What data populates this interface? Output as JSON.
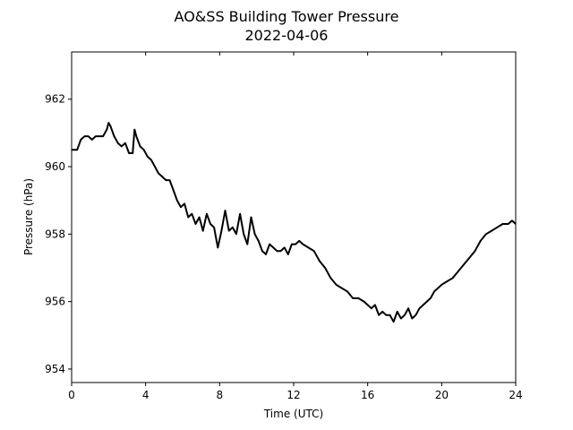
{
  "chart_data": {
    "type": "line",
    "title": "AO&SS Building Tower Pressure",
    "subtitle": "2022-04-06",
    "xlabel": "Time (UTC)",
    "ylabel": "Pressure (hPa)",
    "xlim": [
      0,
      24
    ],
    "ylim": [
      953.6,
      963.4
    ],
    "xticks": [
      0,
      4,
      8,
      12,
      16,
      20,
      24
    ],
    "yticks": [
      954,
      956,
      958,
      960,
      962
    ],
    "grid": false,
    "legend": "none",
    "line_color": "#000000",
    "series": [
      {
        "x": [
          0.0,
          0.3,
          0.5,
          0.7,
          0.9,
          1.1,
          1.3,
          1.5,
          1.7,
          1.9,
          2.0,
          2.1,
          2.3,
          2.5,
          2.7,
          2.9,
          3.1,
          3.3,
          3.4,
          3.5,
          3.7,
          3.9,
          4.1,
          4.3,
          4.5,
          4.7,
          4.9,
          5.1,
          5.3,
          5.5,
          5.7,
          5.9,
          6.1,
          6.3,
          6.5,
          6.7,
          6.9,
          7.1,
          7.3,
          7.5,
          7.7,
          7.9,
          8.1,
          8.3,
          8.5,
          8.7,
          8.9,
          9.1,
          9.3,
          9.5,
          9.7,
          9.9,
          10.1,
          10.3,
          10.5,
          10.7,
          10.9,
          11.1,
          11.3,
          11.5,
          11.7,
          11.9,
          12.1,
          12.3,
          12.5,
          12.8,
          13.1,
          13.4,
          13.7,
          14.0,
          14.3,
          14.6,
          14.9,
          15.2,
          15.5,
          15.8,
          16.0,
          16.2,
          16.4,
          16.6,
          16.8,
          17.0,
          17.2,
          17.4,
          17.6,
          17.8,
          18.0,
          18.2,
          18.4,
          18.6,
          18.8,
          19.0,
          19.2,
          19.4,
          19.6,
          19.8,
          20.0,
          20.3,
          20.6,
          20.9,
          21.2,
          21.5,
          21.8,
          22.1,
          22.4,
          22.7,
          23.0,
          23.3,
          23.6,
          23.8,
          24.0
        ],
        "y": [
          960.5,
          960.5,
          960.8,
          960.9,
          960.9,
          960.8,
          960.9,
          960.9,
          960.9,
          961.1,
          961.3,
          961.2,
          960.9,
          960.7,
          960.6,
          960.7,
          960.4,
          960.4,
          961.1,
          960.9,
          960.6,
          960.5,
          960.3,
          960.2,
          960.0,
          959.8,
          959.7,
          959.6,
          959.6,
          959.3,
          959.0,
          958.8,
          958.9,
          958.5,
          958.6,
          958.3,
          958.5,
          958.1,
          958.6,
          958.3,
          958.2,
          957.6,
          958.1,
          958.7,
          958.1,
          958.2,
          958.0,
          958.6,
          958.0,
          957.7,
          958.5,
          958.0,
          957.8,
          957.5,
          957.4,
          957.7,
          957.6,
          957.5,
          957.5,
          957.6,
          957.4,
          957.7,
          957.7,
          957.8,
          957.7,
          957.6,
          957.5,
          957.2,
          957.0,
          956.7,
          956.5,
          956.4,
          956.3,
          956.1,
          956.1,
          956.0,
          955.9,
          955.8,
          955.9,
          955.6,
          955.7,
          955.6,
          955.6,
          955.4,
          955.7,
          955.5,
          955.6,
          955.8,
          955.5,
          955.6,
          955.8,
          955.9,
          956.0,
          956.1,
          956.3,
          956.4,
          956.5,
          956.6,
          956.7,
          956.9,
          957.1,
          957.3,
          957.5,
          957.8,
          958.0,
          958.1,
          958.2,
          958.3,
          958.3,
          958.4,
          958.3
        ]
      }
    ]
  }
}
